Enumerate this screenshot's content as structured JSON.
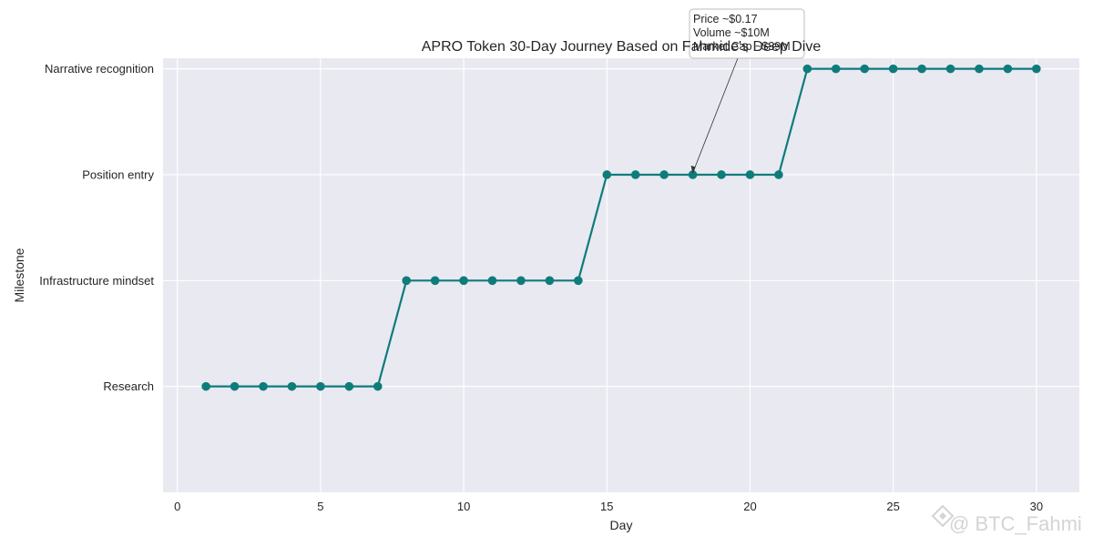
{
  "chart_data": {
    "type": "line",
    "title": "APRO Token 30-Day Journey Based on Fahmide's Deep Dive",
    "xlabel": "Day",
    "ylabel": "Milestone",
    "xlim": [
      -0.5,
      31.5
    ],
    "ylim": [
      -1,
      3.1
    ],
    "x_ticks": [
      0,
      5,
      10,
      15,
      20,
      25,
      30
    ],
    "y_categories": [
      "Research",
      "Infrastructure mindset",
      "Position entry",
      "Narrative recognition"
    ],
    "grid": true,
    "series": [
      {
        "color": "#0e7c7b",
        "marker": "circle",
        "x": [
          1,
          2,
          3,
          4,
          5,
          6,
          7,
          8,
          9,
          10,
          11,
          12,
          13,
          14,
          15,
          16,
          17,
          18,
          19,
          20,
          21,
          22,
          23,
          24,
          25,
          26,
          27,
          28,
          29,
          30
        ],
        "y": [
          "Research",
          "Research",
          "Research",
          "Research",
          "Research",
          "Research",
          "Research",
          "Infrastructure mindset",
          "Infrastructure mindset",
          "Infrastructure mindset",
          "Infrastructure mindset",
          "Infrastructure mindset",
          "Infrastructure mindset",
          "Infrastructure mindset",
          "Position entry",
          "Position entry",
          "Position entry",
          "Position entry",
          "Position entry",
          "Position entry",
          "Position entry",
          "Narrative recognition",
          "Narrative recognition",
          "Narrative recognition",
          "Narrative recognition",
          "Narrative recognition",
          "Narrative recognition",
          "Narrative recognition",
          "Narrative recognition",
          "Narrative recognition"
        ]
      }
    ],
    "annotation": {
      "x": 18,
      "y": "Position entry",
      "lines": [
        "Price ~$0.17",
        "Volume ~$10M",
        "Market Cap ~$39M"
      ]
    }
  },
  "watermark": "@ BTC_Fahmi",
  "colors": {
    "plot_background": "#e9e9f1",
    "grid": "#ffffff",
    "series": "#0e7c7b"
  }
}
